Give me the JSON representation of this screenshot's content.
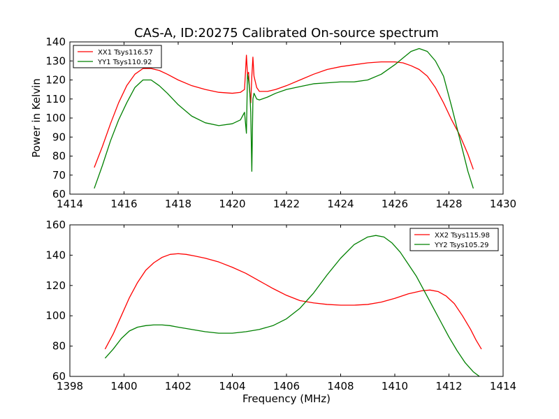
{
  "figure": {
    "title": "CAS-A, ID:20275 Calibrated On-source spectrum",
    "ylabel": "Power in Kelvin",
    "xlabel": "Frequency (MHz)"
  },
  "chart_data": [
    {
      "type": "line",
      "title": "CAS-A, ID:20275 Calibrated On-source spectrum",
      "ylabel": "Power in Kelvin",
      "xlabel": "",
      "xlim": [
        1414,
        1430
      ],
      "ylim": [
        60,
        140
      ],
      "xticks": [
        1414,
        1416,
        1418,
        1420,
        1422,
        1424,
        1426,
        1428,
        1430
      ],
      "yticks": [
        60,
        70,
        80,
        90,
        100,
        110,
        120,
        130,
        140
      ],
      "legend_position": "top-left",
      "grid": false,
      "series": [
        {
          "name": "XX1 Tsys116.57",
          "color": "#ff0000",
          "x": [
            1414.9,
            1415.2,
            1415.5,
            1415.8,
            1416.1,
            1416.4,
            1416.7,
            1417.0,
            1417.3,
            1417.6,
            1418.0,
            1418.5,
            1419.0,
            1419.5,
            1420.0,
            1420.3,
            1420.45,
            1420.52,
            1420.56,
            1420.6,
            1420.64,
            1420.68,
            1420.72,
            1420.76,
            1420.8,
            1420.9,
            1421.0,
            1421.3,
            1421.6,
            1422.0,
            1422.5,
            1423.0,
            1423.5,
            1424.0,
            1424.5,
            1425.0,
            1425.5,
            1426.0,
            1426.3,
            1426.6,
            1426.9,
            1427.2,
            1427.5,
            1427.8,
            1428.1,
            1428.4,
            1428.7,
            1428.9
          ],
          "values": [
            74,
            85,
            97,
            108,
            117,
            123,
            126,
            126,
            125,
            123,
            120,
            117,
            115,
            113.5,
            113,
            113.5,
            115,
            133,
            123,
            124,
            114,
            108,
            122,
            132,
            122,
            116,
            114,
            114,
            115,
            117,
            120,
            123,
            125.5,
            127,
            128,
            129,
            129.5,
            129.5,
            129,
            127.5,
            125.5,
            122,
            116,
            108,
            99,
            91,
            81,
            73
          ]
        },
        {
          "name": "YY1 Tsys110.92",
          "color": "#008000",
          "x": [
            1414.9,
            1415.2,
            1415.5,
            1415.8,
            1416.1,
            1416.4,
            1416.7,
            1417.0,
            1417.3,
            1417.6,
            1418.0,
            1418.5,
            1419.0,
            1419.5,
            1420.0,
            1420.3,
            1420.45,
            1420.52,
            1420.56,
            1420.6,
            1420.64,
            1420.68,
            1420.72,
            1420.76,
            1420.8,
            1420.9,
            1421.0,
            1421.3,
            1421.6,
            1422.0,
            1422.5,
            1423.0,
            1423.5,
            1424.0,
            1424.5,
            1425.0,
            1425.5,
            1426.0,
            1426.3,
            1426.6,
            1426.9,
            1427.2,
            1427.5,
            1427.8,
            1428.1,
            1428.4,
            1428.7,
            1428.9
          ],
          "values": [
            63,
            75,
            88,
            99,
            108,
            116,
            120,
            120,
            117,
            113,
            107,
            101,
            97.5,
            96,
            97,
            99,
            103,
            92,
            123,
            120,
            115,
            103,
            72,
            110,
            113,
            110,
            109.5,
            111,
            113,
            115,
            116.5,
            118,
            118.5,
            119,
            119,
            120,
            123,
            128,
            131.5,
            135,
            136.5,
            135,
            130,
            122,
            106,
            89,
            72,
            63
          ]
        }
      ]
    },
    {
      "type": "line",
      "title": "",
      "ylabel": "",
      "xlabel": "Frequency (MHz)",
      "xlim": [
        1398,
        1414
      ],
      "ylim": [
        60,
        160
      ],
      "xticks": [
        1398,
        1400,
        1402,
        1404,
        1406,
        1408,
        1410,
        1412,
        1414
      ],
      "yticks": [
        60,
        80,
        100,
        120,
        140,
        160
      ],
      "legend_position": "top-right",
      "grid": false,
      "series": [
        {
          "name": "XX2 Tsys115.98",
          "color": "#ff0000",
          "x": [
            1399.3,
            1399.6,
            1399.9,
            1400.2,
            1400.5,
            1400.8,
            1401.1,
            1401.4,
            1401.7,
            1402.0,
            1402.3,
            1402.6,
            1403.0,
            1403.5,
            1404.0,
            1404.5,
            1405.0,
            1405.5,
            1406.0,
            1406.5,
            1407.0,
            1407.5,
            1408.0,
            1408.5,
            1409.0,
            1409.5,
            1410.0,
            1410.5,
            1411.0,
            1411.3,
            1411.6,
            1411.9,
            1412.2,
            1412.5,
            1412.8,
            1413.0,
            1413.2
          ],
          "values": [
            78,
            88,
            100,
            112,
            122,
            130,
            135,
            138.5,
            140.5,
            141,
            140.5,
            139.5,
            138,
            135.5,
            132,
            128,
            123,
            118,
            113.5,
            110,
            108.5,
            107.5,
            107,
            107,
            107.5,
            109,
            111.5,
            114.5,
            116.5,
            117,
            116,
            113,
            108,
            100,
            91,
            84,
            78
          ]
        },
        {
          "name": "YY2 Tsys105.29",
          "color": "#008000",
          "x": [
            1399.3,
            1399.6,
            1399.9,
            1400.2,
            1400.5,
            1400.8,
            1401.1,
            1401.4,
            1401.7,
            1402.0,
            1402.5,
            1403.0,
            1403.5,
            1404.0,
            1404.5,
            1405.0,
            1405.5,
            1406.0,
            1406.5,
            1407.0,
            1407.5,
            1408.0,
            1408.5,
            1409.0,
            1409.3,
            1409.6,
            1409.9,
            1410.2,
            1410.5,
            1410.8,
            1411.1,
            1411.4,
            1411.7,
            1412.0,
            1412.3,
            1412.6,
            1412.9,
            1413.2
          ],
          "values": [
            72,
            78,
            85,
            90,
            92.5,
            93.5,
            94,
            94,
            93.5,
            92.5,
            91,
            89.5,
            88.5,
            88.5,
            89.5,
            91,
            93.5,
            98,
            105,
            115,
            127,
            138,
            147,
            152,
            153,
            152,
            148,
            142,
            134,
            126,
            116,
            106,
            96,
            86,
            77,
            69,
            63,
            59
          ]
        }
      ]
    }
  ]
}
